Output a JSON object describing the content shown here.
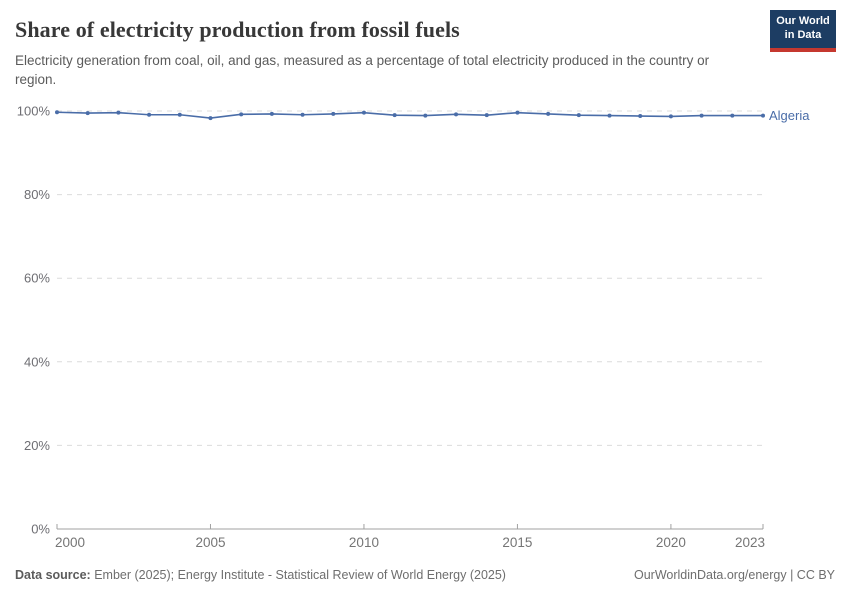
{
  "header": {
    "title": "Share of electricity production from fossil fuels",
    "subtitle": "Electricity generation from coal, oil, and gas, measured as a percentage of total electricity produced in the country or region."
  },
  "logo": {
    "line1": "Our World",
    "line2": "in Data",
    "background": "#1d3d63",
    "stripe": "#c5382f"
  },
  "chart_data": {
    "type": "line",
    "title": "Share of electricity production from fossil fuels",
    "x": [
      2000,
      2001,
      2002,
      2003,
      2004,
      2005,
      2006,
      2007,
      2008,
      2009,
      2010,
      2011,
      2012,
      2013,
      2014,
      2015,
      2016,
      2017,
      2018,
      2019,
      2020,
      2021,
      2022,
      2023
    ],
    "series": [
      {
        "name": "Algeria",
        "color": "#4a6da8",
        "values": [
          99.7,
          99.5,
          99.6,
          99.1,
          99.1,
          98.3,
          99.2,
          99.3,
          99.1,
          99.3,
          99.6,
          99.0,
          98.9,
          99.2,
          99.0,
          99.6,
          99.3,
          99.0,
          98.9,
          98.8,
          98.7,
          98.9,
          98.9,
          98.9
        ]
      }
    ],
    "xlabel": "",
    "ylabel": "",
    "ylim": [
      0,
      100
    ],
    "yticks": [
      0,
      20,
      40,
      60,
      80,
      100
    ],
    "ytick_suffix": "%",
    "xticks": [
      2000,
      2005,
      2010,
      2015,
      2020,
      2023
    ],
    "grid": "horizontal-dashed",
    "legend_position": "end-of-line-label",
    "colors": {
      "gridline": "#dcdcdc",
      "axis_line": "#a1a1a1",
      "y_tick_label": "#6e6e73",
      "x_tick_label": "#757575"
    }
  },
  "footer": {
    "source_label": "Data source:",
    "source_text": " Ember (2025); Energy Institute - Statistical Review of World Energy (2025)",
    "link_text": "OurWorldinData.org/energy | CC BY"
  }
}
